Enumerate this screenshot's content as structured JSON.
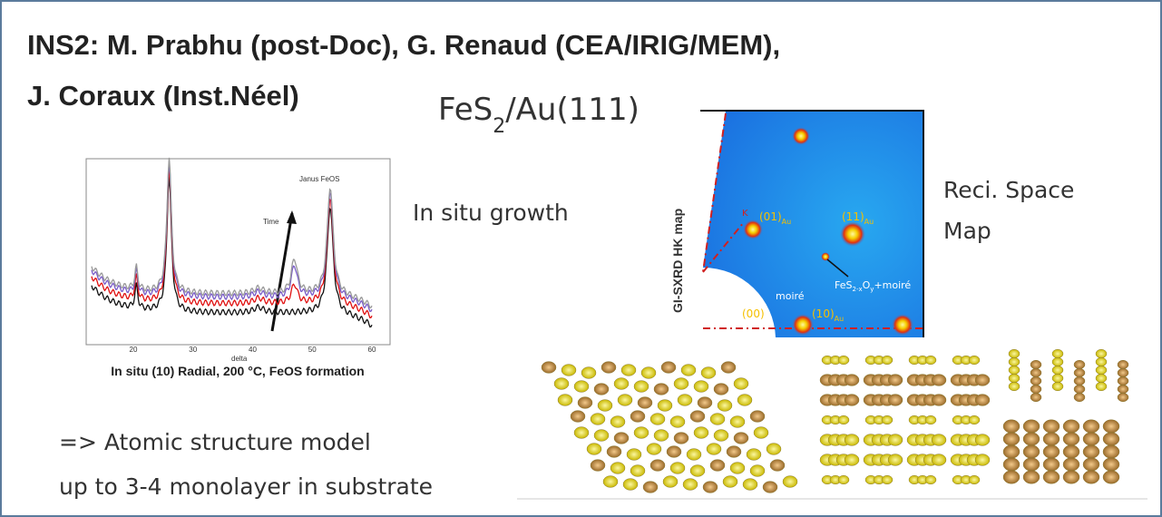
{
  "header": {
    "title_line1": "INS2: M. Prabhu (post-Doc), G. Renaud (CEA/IRIG/MEM),",
    "title_line2": "J. Coraux (Inst.Néel)"
  },
  "system": {
    "formula": "FeS",
    "subscript": "2",
    "suffix": "/Au(111)"
  },
  "growth_figure": {
    "caption": "In situ (10) Radial, 200 °C, FeOS formation",
    "annotation": "Janus FeOS",
    "arrow_label": "Time",
    "x_axis_label": "delta",
    "x_ticks": [
      "20",
      "30",
      "40",
      "50",
      "60"
    ]
  },
  "growth_label": "In situ growth",
  "map_figure": {
    "axis_label": "GI-SXRD HK map",
    "k_label": "K",
    "peaks": [
      {
        "label": "(01)",
        "sub": "Au"
      },
      {
        "label": "(11)",
        "sub": "Au"
      },
      {
        "label": "(10)",
        "sub": "Au"
      },
      {
        "label": "(00)"
      }
    ],
    "phase": {
      "p1": "FeS",
      "s1": "2-x",
      "p2": "O",
      "s2": "y",
      "p3": "+moiré"
    },
    "moire": "moiré"
  },
  "map_label": {
    "line1": "Reci. Space",
    "line2": "Map"
  },
  "model": {
    "line1": "=> Atomic structure model",
    "line2": "up to 3-4 monolayer in substrate"
  }
}
